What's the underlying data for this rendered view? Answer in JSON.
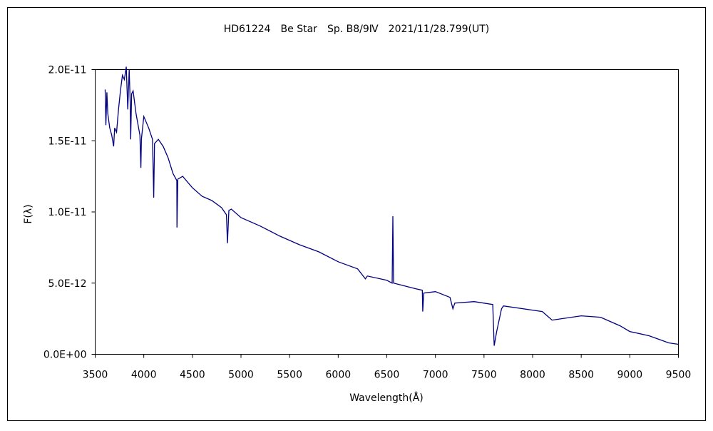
{
  "chart_data": {
    "type": "line",
    "title": "HD61224　Be Star　Sp. B8/9Ⅳ　2021/11/28.799(UT)",
    "xlabel": "Wavelength(Å)",
    "ylabel": "F(λ)",
    "xlim": [
      3500,
      9500
    ],
    "ylim": [
      0,
      2e-11
    ],
    "xticks": [
      3500,
      4000,
      4500,
      5000,
      5500,
      6000,
      6500,
      7000,
      7500,
      8000,
      8500,
      9000,
      9500
    ],
    "yticks": [
      0,
      5e-12,
      1e-11,
      1.5e-11,
      2e-11
    ],
    "ytick_labels": [
      "0.0E+00",
      "5.0E-12",
      "1.0E-11",
      "1.5E-11",
      "2.0E-11"
    ],
    "grid": false,
    "line_color": "#000080",
    "series": [
      {
        "x": [
          3603,
          3610,
          3620,
          3630,
          3650,
          3670,
          3690,
          3700,
          3720,
          3740,
          3760,
          3780,
          3800,
          3820,
          3835,
          3850,
          3860,
          3865,
          3875,
          3890,
          3920,
          3960,
          3970,
          3975,
          4000,
          4050,
          4090,
          4102,
          4110,
          4150,
          4200,
          4250,
          4300,
          4340,
          4341,
          4350,
          4400,
          4500,
          4600,
          4700,
          4800,
          4850,
          4861,
          4875,
          4900,
          5000,
          5200,
          5400,
          5600,
          5800,
          6000,
          6200,
          6280,
          6300,
          6500,
          6555,
          6562,
          6570,
          6800,
          6865,
          6870,
          6880,
          7000,
          7150,
          7180,
          7200,
          7400,
          7590,
          7605,
          7630,
          7680,
          7700,
          8100,
          8200,
          8500,
          8700,
          8900,
          9000,
          9200,
          9400,
          9500
        ],
        "y": [
          1.86e-11,
          1.61e-11,
          1.84e-11,
          1.69e-11,
          1.59e-11,
          1.54e-11,
          1.46e-11,
          1.59e-11,
          1.56e-11,
          1.72e-11,
          1.85e-11,
          1.96e-11,
          1.93e-11,
          2.02e-11,
          1.72e-11,
          2e-11,
          1.77e-11,
          1.51e-11,
          1.83e-11,
          1.85e-11,
          1.69e-11,
          1.54e-11,
          1.31e-11,
          1.51e-11,
          1.67e-11,
          1.59e-11,
          1.51e-11,
          1.1e-11,
          1.48e-11,
          1.51e-11,
          1.46e-11,
          1.38e-11,
          1.27e-11,
          1.22e-11,
          8.9e-12,
          1.23e-11,
          1.25e-11,
          1.17e-11,
          1.11e-11,
          1.08e-11,
          1.03e-11,
          9.8e-12,
          7.8e-12,
          1.01e-11,
          1.02e-11,
          9.6e-12,
          9e-12,
          8.3e-12,
          7.7e-12,
          7.2e-12,
          6.5e-12,
          6e-12,
          5.3e-12,
          5.5e-12,
          5.2e-12,
          5e-12,
          9.7e-12,
          5e-12,
          4.6e-12,
          4.5e-12,
          3e-12,
          4.3e-12,
          4.4e-12,
          4e-12,
          3.2e-12,
          3.6e-12,
          3.7e-12,
          3.5e-12,
          6e-13,
          1.6e-12,
          3.2e-12,
          3.4e-12,
          3e-12,
          2.4e-12,
          2.7e-12,
          2.6e-12,
          2e-12,
          1.6e-12,
          1.3e-12,
          8e-13,
          7e-13
        ]
      }
    ]
  }
}
